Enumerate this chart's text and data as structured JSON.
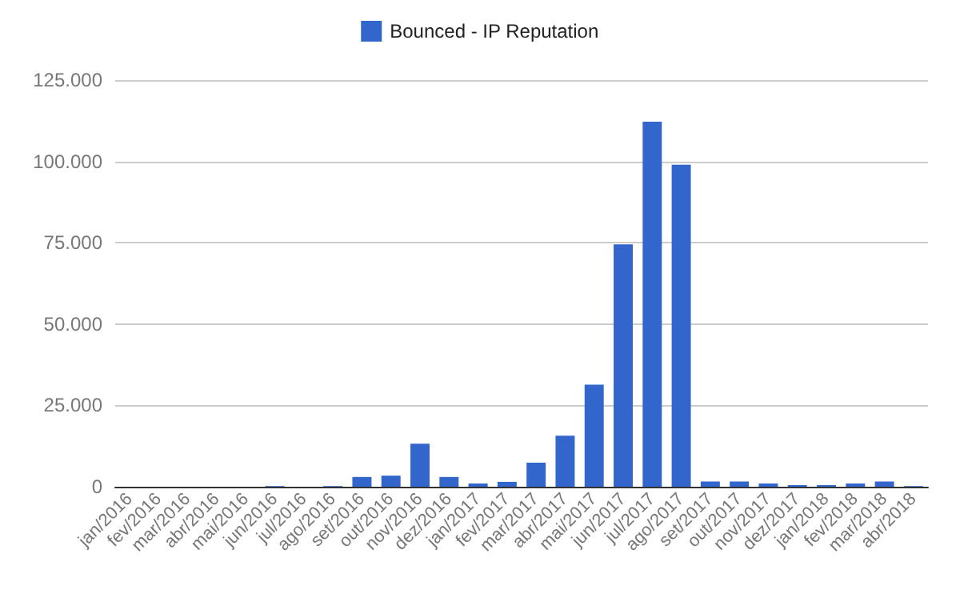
{
  "chart_data": {
    "type": "bar",
    "categories": [
      "jan/2016",
      "fev/2016",
      "mar/2016",
      "abr/2016",
      "mai/2016",
      "jun/2016",
      "jul/2016",
      "ago/2016",
      "set/2016",
      "out/2016",
      "nov/2016",
      "dez/2016",
      "jan/2017",
      "fev/2017",
      "mar/2017",
      "abr/2017",
      "mai/2017",
      "jun/2017",
      "jul/2017",
      "ago/2017",
      "set/2017",
      "out/2017",
      "nov/2017",
      "dez/2017",
      "jan/2018",
      "fev/2018",
      "mar/2018",
      "abr/2018"
    ],
    "series": [
      {
        "name": "Bounced - IP Reputation",
        "color": "#3366cc",
        "values": [
          0,
          0,
          0,
          0,
          0,
          200,
          0,
          200,
          3000,
          3400,
          13200,
          3000,
          1000,
          1500,
          7400,
          15700,
          31400,
          74500,
          112200,
          99000,
          1600,
          1600,
          1000,
          500,
          500,
          1000,
          1600,
          200
        ]
      }
    ],
    "ylim": [
      0,
      125000
    ],
    "yticks": [
      {
        "value": 0,
        "label": "0"
      },
      {
        "value": 25000,
        "label": "25.000"
      },
      {
        "value": 50000,
        "label": "50.000"
      },
      {
        "value": 75000,
        "label": "75.000"
      },
      {
        "value": 100000,
        "label": "100.000"
      },
      {
        "value": 125000,
        "label": "125.000"
      }
    ],
    "grid": "y",
    "legend": "top"
  }
}
